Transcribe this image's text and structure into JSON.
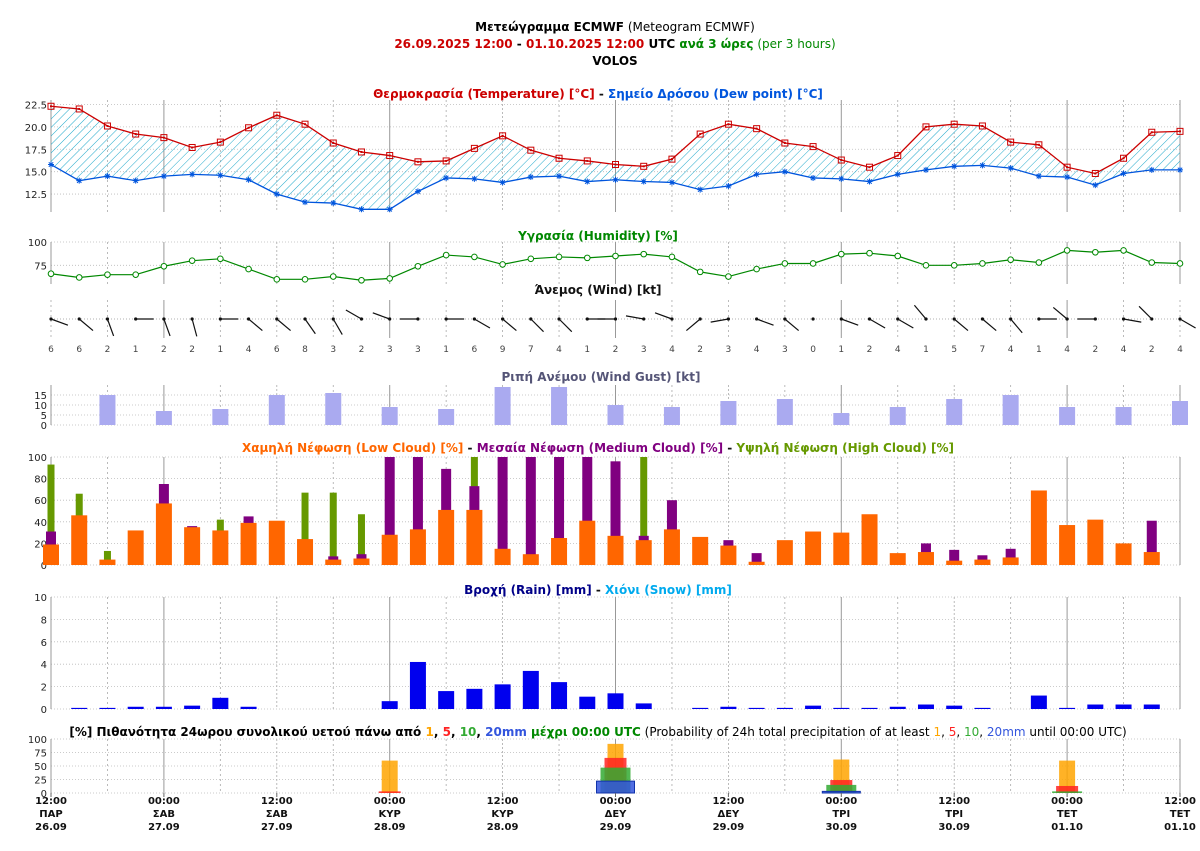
{
  "header": {
    "title_gr": "Μετεώγραμμα ECMWF",
    "title_en": " (Meteogram ECMWF)",
    "range_start": "26.09.2025 12:00",
    "range_sep": " - ",
    "range_end": "01.10.2025 12:00",
    "range_utc": " UTC ",
    "step_gr": "ανά 3 ώρες",
    "step_en": " (per 3 hours)",
    "location": "VOLOS"
  },
  "colors": {
    "temperature": "#cc0000",
    "dew_point": "#0055dd",
    "humidity": "#008800",
    "gust": "#aaaaf0",
    "low_cloud": "#ff6600",
    "medium_cloud": "#800080",
    "high_cloud": "#669900",
    "rain": "#0000ee",
    "snow": "#00aaee",
    "p1": "#ffa500",
    "p5": "#ff2222",
    "p10": "#33aa33",
    "p20": "#3355dd"
  },
  "panel_titles": {
    "temp_a": "Θερμοκρασία (Temperature) [°C]",
    "temp_sep": " - ",
    "temp_b": "Σημείο Δρόσου (Dew point) [°C]",
    "humidity": "Υγρασία (Humidity) [%]",
    "wind": "Άνεμος (Wind) [kt]",
    "gust": "Ριπή Ανέμου (Wind Gust) [kt]",
    "cloud_low": "Χαμηλή Νέφωση (Low Cloud) [%]",
    "cloud_sep1": " - ",
    "cloud_med": "Μεσαία Νέφωση (Medium Cloud) [%]",
    "cloud_sep2": " - ",
    "cloud_high": "Υψηλή Νέφωση (High Cloud) [%]",
    "rain": "Βροχή (Rain) [mm]",
    "rain_sep": " - ",
    "snow": "Χιόνι (Snow) [mm]",
    "prob_a": "[%] Πιθανότητα 24ωρου συνολικού υετού πάνω από ",
    "prob_v1": "1",
    "prob_c1": ", ",
    "prob_v5": "5",
    "prob_c2": ", ",
    "prob_v10": "10",
    "prob_c3": ", ",
    "prob_v20": "20mm",
    "prob_b": " μέχρι 00:00 UTC",
    "prob_en_a": " (Probability of 24h total precipitation of at least ",
    "prob_en_v1": "1",
    "prob_en_c1": ", ",
    "prob_en_v5": "5",
    "prob_en_c2": ", ",
    "prob_en_v10": "10",
    "prob_en_c3": ", ",
    "prob_en_v20": "20mm",
    "prob_en_b": " until 00:00 UTC)"
  },
  "x_axis": {
    "labels": [
      {
        "time": "12:00",
        "day": "ΠΑΡ",
        "date": "26.09"
      },
      {
        "time": "00:00",
        "day": "ΣΑΒ",
        "date": "27.09"
      },
      {
        "time": "12:00",
        "day": "ΣΑΒ",
        "date": "27.09"
      },
      {
        "time": "00:00",
        "day": "ΚΥΡ",
        "date": "28.09"
      },
      {
        "time": "12:00",
        "day": "ΚΥΡ",
        "date": "28.09"
      },
      {
        "time": "00:00",
        "day": "ΔΕΥ",
        "date": "29.09"
      },
      {
        "time": "12:00",
        "day": "ΔΕΥ",
        "date": "29.09"
      },
      {
        "time": "00:00",
        "day": "ΤΡΙ",
        "date": "30.09"
      },
      {
        "time": "12:00",
        "day": "ΤΡΙ",
        "date": "30.09"
      },
      {
        "time": "00:00",
        "day": "ΤΕΤ",
        "date": "01.10"
      },
      {
        "time": "12:00",
        "day": "ΤΕΤ",
        "date": "01.10"
      }
    ]
  },
  "chart_data": [
    {
      "type": "line",
      "name": "temperature_dewpoint",
      "step_hours": 3,
      "points": 41,
      "ylim": [
        10.5,
        23
      ],
      "yticks": [
        12.5,
        15.0,
        17.5,
        20.0,
        22.5
      ],
      "series": [
        {
          "name": "Θερμοκρασία (Temperature)",
          "values": [
            22.3,
            22.0,
            20.1,
            19.2,
            18.8,
            17.7,
            18.3,
            19.9,
            21.3,
            20.3,
            18.2,
            17.2,
            16.8,
            16.1,
            16.2,
            17.6,
            19.0,
            17.4,
            16.5,
            16.2,
            15.8,
            15.6,
            16.4,
            19.2,
            20.3,
            19.8,
            18.2,
            17.8,
            16.3,
            15.5,
            16.8,
            20.0,
            20.3,
            20.1,
            18.3,
            18.0,
            15.5,
            14.8,
            16.5,
            19.4,
            19.5
          ]
        },
        {
          "name": "Σημείο Δρόσου (Dew point)",
          "values": [
            15.8,
            14.0,
            14.5,
            14.0,
            14.5,
            14.7,
            14.6,
            14.1,
            12.5,
            11.6,
            11.5,
            10.8,
            10.8,
            12.8,
            14.3,
            14.2,
            13.8,
            14.4,
            14.5,
            13.9,
            14.1,
            13.9,
            13.8,
            13.0,
            13.4,
            14.7,
            15.0,
            14.3,
            14.2,
            13.9,
            14.7,
            15.2,
            15.6,
            15.7,
            15.4,
            14.5,
            14.4,
            13.5,
            14.8,
            15.2,
            15.2
          ]
        }
      ]
    },
    {
      "type": "line",
      "name": "humidity",
      "step_hours": 3,
      "ylim": [
        55,
        100
      ],
      "yticks": [
        75,
        100
      ],
      "series": [
        {
          "name": "Υγρασία (Humidity)",
          "values": [
            66,
            62,
            65,
            65,
            74,
            80,
            82,
            71,
            60,
            60,
            63,
            59,
            61,
            74,
            86,
            84,
            76,
            82,
            84,
            83,
            85,
            87,
            84,
            68,
            63,
            71,
            77,
            77,
            87,
            88,
            85,
            75,
            75,
            77,
            81,
            78,
            91,
            89,
            91,
            78,
            77
          ]
        }
      ]
    },
    {
      "type": "table",
      "name": "wind_speed_kt",
      "step_hours": 3,
      "values": [
        6,
        6,
        2,
        1,
        2,
        2,
        1,
        4,
        6,
        8,
        3,
        2,
        3,
        3,
        1,
        6,
        9,
        7,
        4,
        1,
        2,
        3,
        4,
        2,
        3,
        4,
        3,
        0,
        1,
        2,
        4,
        1,
        5,
        7,
        4,
        1,
        4,
        2,
        4,
        2,
        4
      ]
    },
    {
      "type": "bar",
      "name": "wind_gust",
      "step_hours": 6,
      "offset_hours": 6,
      "ylim": [
        0,
        20
      ],
      "yticks": [
        0,
        5,
        10,
        15
      ],
      "values": [
        15,
        7,
        8,
        15,
        16,
        9,
        8,
        19,
        19,
        10,
        9,
        12,
        13,
        6,
        9,
        13,
        15,
        9,
        9,
        12
      ]
    },
    {
      "type": "bar",
      "name": "cloud_cover",
      "step_hours": 3,
      "ylim": [
        0,
        100
      ],
      "yticks": [
        0,
        20,
        40,
        60,
        80,
        100
      ],
      "series": [
        {
          "name": "Χαμηλή Νέφωση (Low Cloud)",
          "values": [
            19,
            46,
            5,
            32,
            57,
            35,
            32,
            39,
            41,
            24,
            5,
            6,
            28,
            33,
            51,
            51,
            15,
            10,
            25,
            41,
            27,
            23,
            33,
            26,
            18,
            3,
            23,
            31,
            30,
            47,
            11,
            12,
            4,
            5,
            7,
            69,
            37,
            42,
            20,
            12
          ]
        },
        {
          "name": "Μεσαία Νέφωση (Medium Cloud)",
          "values": [
            31,
            0,
            0,
            0,
            75,
            36,
            0,
            45,
            0,
            0,
            8,
            10,
            100,
            100,
            89,
            73,
            100,
            100,
            100,
            100,
            96,
            27,
            60,
            0,
            23,
            11,
            0,
            0,
            0,
            0,
            0,
            20,
            14,
            9,
            15,
            0,
            0,
            0,
            0,
            41
          ]
        },
        {
          "name": "Υψηλή Νέφωση (High Cloud)",
          "values": [
            93,
            66,
            13,
            0,
            0,
            0,
            42,
            0,
            0,
            67,
            67,
            47,
            0,
            0,
            0,
            100,
            0,
            0,
            0,
            0,
            0,
            100,
            0,
            0,
            0,
            0,
            0,
            0,
            0,
            0,
            0,
            0,
            0,
            0,
            0,
            0,
            0,
            0,
            0,
            0
          ]
        }
      ]
    },
    {
      "type": "bar",
      "name": "rain_snow",
      "step_hours": 3,
      "ylim": [
        0,
        10
      ],
      "yticks": [
        0,
        2,
        4,
        6,
        8,
        10
      ],
      "series": [
        {
          "name": "Βροχή (Rain)",
          "values": [
            0.1,
            0.1,
            0.2,
            0.2,
            0.3,
            1.0,
            0.2,
            0,
            0,
            0,
            0,
            0.7,
            4.2,
            1.6,
            1.8,
            2.2,
            3.4,
            2.4,
            1.1,
            1.4,
            0.5,
            0,
            0.1,
            0.2,
            0.1,
            0.1,
            0.3,
            0.1,
            0.1,
            0.2,
            0.4,
            0.3,
            0.1,
            0,
            1.2,
            0.1,
            0.4,
            0.4,
            0.4
          ]
        },
        {
          "name": "Χιόνι (Snow)",
          "values": [
            0,
            0,
            0,
            0,
            0,
            0,
            0,
            0,
            0,
            0,
            0,
            0,
            0,
            0,
            0,
            0,
            0,
            0,
            0,
            0,
            0,
            0,
            0,
            0,
            0,
            0,
            0,
            0,
            0,
            0,
            0,
            0,
            0,
            0,
            0,
            0,
            0,
            0,
            0
          ]
        }
      ]
    },
    {
      "type": "bar",
      "name": "precip_probability",
      "ylim": [
        0,
        100
      ],
      "yticks": [
        0,
        25,
        50,
        75,
        100
      ],
      "categories": [
        "28.09 00:00",
        "29.09 00:00",
        "30.09 00:00",
        "01.10 00:00"
      ],
      "series": [
        {
          "name": "1",
          "values": [
            60,
            91,
            62,
            60
          ]
        },
        {
          "name": "5",
          "values": [
            3,
            65,
            24,
            13
          ]
        },
        {
          "name": "10",
          "values": [
            0,
            47,
            15,
            3
          ]
        },
        {
          "name": "20mm",
          "values": [
            0,
            22,
            3,
            0
          ]
        }
      ]
    }
  ]
}
